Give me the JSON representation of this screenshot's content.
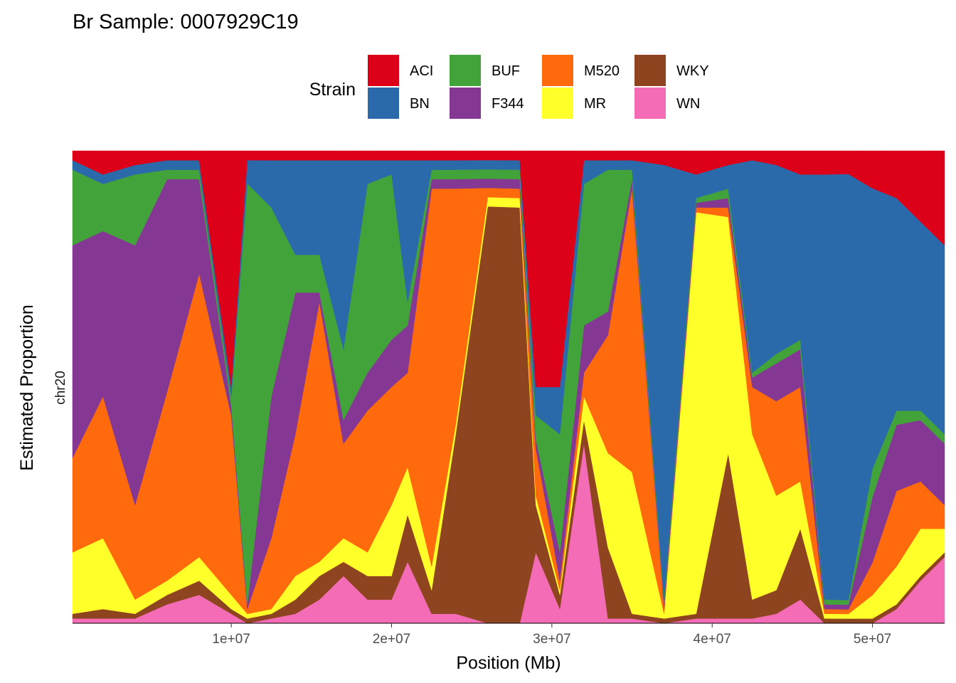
{
  "chart_data": {
    "type": "area",
    "stacked": true,
    "normalized": true,
    "title": "Br Sample: 0007929C19",
    "xlabel": "Position (Mb)",
    "ylabel": "Estimated Proportion",
    "facet_label": "chr20",
    "xlim": [
      100000,
      54500000
    ],
    "ylim": [
      0,
      1
    ],
    "x_ticks": [
      10000000,
      20000000,
      30000000,
      40000000,
      50000000
    ],
    "x_tick_labels": [
      "1e+07",
      "2e+07",
      "3e+07",
      "4e+07",
      "5e+07"
    ],
    "grid": false,
    "legend": {
      "title": "Strain",
      "position": "top",
      "entries": [
        "ACI",
        "BN",
        "BUF",
        "F344",
        "M520",
        "MR",
        "WKY",
        "WN"
      ]
    },
    "colors": {
      "ACI": "#DC0018",
      "BN": "#2B6AAA",
      "BUF": "#42A33A",
      "F344": "#843894",
      "M520": "#FF6A0C",
      "MR": "#FFFF2A",
      "WKY": "#8F4420",
      "WN": "#F36CB5"
    },
    "stack_order_bottom_to_top": [
      "WN",
      "WKY",
      "MR",
      "M520",
      "F344",
      "BUF",
      "BN",
      "ACI"
    ],
    "x": [
      100000,
      2000000,
      4000000,
      6000000,
      8000000,
      10000000,
      11000000,
      12500000,
      14000000,
      15500000,
      17000000,
      18500000,
      20000000,
      21000000,
      22500000,
      24000000,
      26000000,
      28000000,
      29000000,
      30500000,
      32000000,
      33500000,
      35000000,
      37000000,
      39000000,
      41000000,
      42500000,
      44000000,
      45500000,
      47000000,
      48500000,
      50000000,
      51500000,
      53000000,
      54500000
    ],
    "series": [
      {
        "name": "ACI",
        "values": [
          0.02,
          0.05,
          0.03,
          0.02,
          0.02,
          0.5,
          0.02,
          0.02,
          0.02,
          0.02,
          0.02,
          0.02,
          0.02,
          0.02,
          0.02,
          0.02,
          0.02,
          0.02,
          0.5,
          0.5,
          0.02,
          0.02,
          0.02,
          0.03,
          0.05,
          0.03,
          0.02,
          0.03,
          0.05,
          0.05,
          0.05,
          0.08,
          0.1,
          0.15,
          0.2
        ]
      },
      {
        "name": "BN",
        "values": [
          0.02,
          0.02,
          0.02,
          0.02,
          0.02,
          0.02,
          0.05,
          0.1,
          0.2,
          0.2,
          0.4,
          0.05,
          0.03,
          0.3,
          0.02,
          0.02,
          0.02,
          0.02,
          0.06,
          0.1,
          0.05,
          0.02,
          0.02,
          0.92,
          0.05,
          0.05,
          0.45,
          0.4,
          0.35,
          0.9,
          0.92,
          0.6,
          0.45,
          0.4,
          0.4
        ]
      },
      {
        "name": "BUF",
        "values": [
          0.16,
          0.1,
          0.15,
          0.02,
          0.02,
          0.02,
          0.9,
          0.4,
          0.08,
          0.08,
          0.15,
          0.4,
          0.35,
          0.05,
          0.02,
          0.02,
          0.02,
          0.02,
          0.05,
          0.25,
          0.3,
          0.3,
          0.02,
          0.01,
          0.01,
          0.02,
          0.01,
          0.02,
          0.02,
          0.01,
          0.01,
          0.06,
          0.03,
          0.02,
          0.02
        ]
      },
      {
        "name": "F344",
        "values": [
          0.45,
          0.35,
          0.55,
          0.45,
          0.2,
          0.02,
          0.01,
          0.3,
          0.3,
          0.02,
          0.05,
          0.08,
          0.1,
          0.1,
          0.02,
          0.02,
          0.02,
          0.02,
          0.02,
          0.06,
          0.1,
          0.05,
          0.02,
          0.01,
          0.01,
          0.02,
          0.02,
          0.08,
          0.08,
          0.01,
          0.01,
          0.14,
          0.14,
          0.13,
          0.13
        ]
      },
      {
        "name": "M520",
        "values": [
          0.2,
          0.3,
          0.2,
          0.4,
          0.6,
          0.38,
          0.01,
          0.15,
          0.3,
          0.55,
          0.2,
          0.3,
          0.25,
          0.2,
          0.8,
          0.5,
          0.02,
          0.02,
          0.1,
          0.02,
          0.05,
          0.25,
          0.6,
          0.01,
          0.01,
          0.02,
          0.1,
          0.2,
          0.2,
          0.01,
          0.01,
          0.07,
          0.16,
          0.1,
          0.05
        ]
      },
      {
        "name": "MR",
        "values": [
          0.13,
          0.15,
          0.03,
          0.03,
          0.05,
          0.03,
          0.01,
          0.01,
          0.05,
          0.03,
          0.05,
          0.05,
          0.15,
          0.1,
          0.05,
          0.02,
          0.02,
          0.02,
          0.02,
          0.01,
          0.05,
          0.2,
          0.3,
          0.01,
          0.85,
          0.5,
          0.35,
          0.2,
          0.1,
          0.01,
          0.01,
          0.05,
          0.08,
          0.1,
          0.05
        ]
      },
      {
        "name": "WKY",
        "values": [
          0.01,
          0.02,
          0.01,
          0.02,
          0.03,
          0.01,
          0.01,
          0.01,
          0.03,
          0.05,
          0.03,
          0.05,
          0.05,
          0.1,
          0.05,
          0.38,
          0.9,
          0.88,
          0.1,
          0.03,
          0.05,
          0.15,
          0.01,
          0.01,
          0.01,
          0.35,
          0.04,
          0.05,
          0.15,
          0.01,
          0.01,
          0.01,
          0.01,
          0.01,
          0.01
        ]
      },
      {
        "name": "WN",
        "values": [
          0.01,
          0.01,
          0.01,
          0.04,
          0.06,
          0.02,
          0.0,
          0.01,
          0.02,
          0.05,
          0.1,
          0.05,
          0.05,
          0.13,
          0.02,
          0.02,
          0.0,
          0.0,
          0.15,
          0.03,
          0.38,
          0.01,
          0.01,
          0.0,
          0.01,
          0.01,
          0.01,
          0.02,
          0.05,
          0.0,
          0.0,
          0.0,
          0.03,
          0.09,
          0.14
        ]
      }
    ]
  }
}
